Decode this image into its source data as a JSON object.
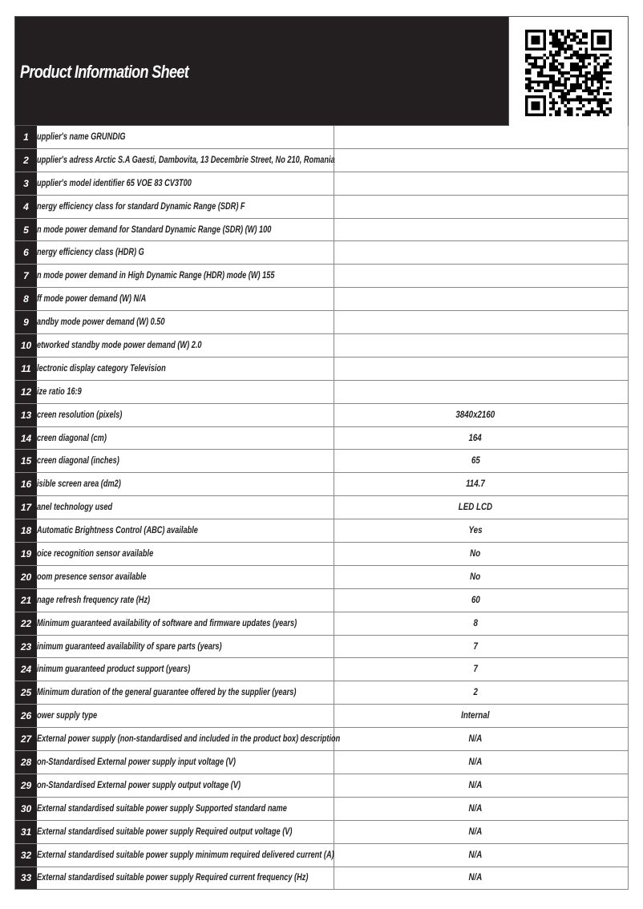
{
  "header": {
    "title": "Product Information Sheet",
    "qr_icon": "qr-code"
  },
  "rows": [
    {
      "n": "1",
      "label": "upplier's name  GRUNDIG",
      "value": ""
    },
    {
      "n": "2",
      "label": "upplier's adress Arctic S.A  Gaesti, Dambovita, 13 Decembrie Street, No 210, Romania",
      "value": ""
    },
    {
      "n": "3",
      "label": "upplier's model identifier 65 VOE 83 CV3T00",
      "value": ""
    },
    {
      "n": "4",
      "label": "nergy efficiency class for standard Dynamic Range (SDR) F",
      "value": ""
    },
    {
      "n": "5",
      "label": "n mode power demand for Standard Dynamic Range (SDR) (W) 100",
      "value": ""
    },
    {
      "n": "6",
      "label": "nergy efficiency class (HDR) G",
      "value": ""
    },
    {
      "n": "7",
      "label": "n mode power demand in High Dynamic Range (HDR) mode  (W) 155",
      "value": ""
    },
    {
      "n": "8",
      "label": "ff mode power demand (W) N/A",
      "value": ""
    },
    {
      "n": "9",
      "label": "andby mode power demand  (W) 0.50",
      "value": ""
    },
    {
      "n": "10",
      "label": "etworked standby mode power demand (W) 2.0",
      "value": ""
    },
    {
      "n": "11",
      "label": "lectronic display category Television",
      "value": ""
    },
    {
      "n": "12",
      "label": "ize ratio 16:9",
      "value": ""
    },
    {
      "n": "13",
      "label": "creen resolution (pixels)",
      "value": "3840x2160"
    },
    {
      "n": "14",
      "label": "creen diagonal (cm)",
      "value": "164"
    },
    {
      "n": "15",
      "label": "creen diagonal (inches)",
      "value": "65"
    },
    {
      "n": "16",
      "label": "isible screen area (dm2)",
      "value": "114.7"
    },
    {
      "n": "17",
      "label": "anel technology used",
      "value": "LED LCD"
    },
    {
      "n": "18",
      "label": "  Automatic Brightness Control (ABC) available",
      "value": "Yes"
    },
    {
      "n": "19",
      "label": "oice recognition sensor available",
      "value": "No"
    },
    {
      "n": "20",
      "label": "oom presence sensor available",
      "value": "No"
    },
    {
      "n": "21",
      "label": "nage refresh frequency rate (Hz)",
      "value": "60"
    },
    {
      "n": "22",
      "label": "  Minimum guaranteed availability of software and firmware updates (years)",
      "value": "8"
    },
    {
      "n": "23",
      "label": "inimum guaranteed availability of spare parts (years)",
      "value": "7"
    },
    {
      "n": "24",
      "label": "inimum guaranteed product support (years)",
      "value": "7"
    },
    {
      "n": "25",
      "label": "  Minimum duration of the general guarantee offered by the supplier (years)",
      "value": "2"
    },
    {
      "n": "26",
      "label": "ower supply type",
      "value": "Internal"
    },
    {
      "n": "27",
      "label": "  External power supply (non-standardised and included in the product box) description",
      "value": "N/A"
    },
    {
      "n": "28",
      "label": "on-Standardised External power supply input voltage (V)",
      "value": "N/A"
    },
    {
      "n": "29",
      "label": "on-Standardised External power supply output voltage (V)",
      "value": "N/A"
    },
    {
      "n": "30",
      "label": "  External standardised suitable power supply Supported standard name",
      "value": "N/A"
    },
    {
      "n": "31",
      "label": "  External standardised suitable power supply Required output voltage (V)",
      "value": "N/A"
    },
    {
      "n": "32",
      "label": "  External standardised suitable  power supply minimum required delivered current  (A)",
      "value": "N/A"
    },
    {
      "n": "33",
      "label": "  External standardised suitable power supply Required current frequency (Hz)",
      "value": "N/A"
    }
  ]
}
